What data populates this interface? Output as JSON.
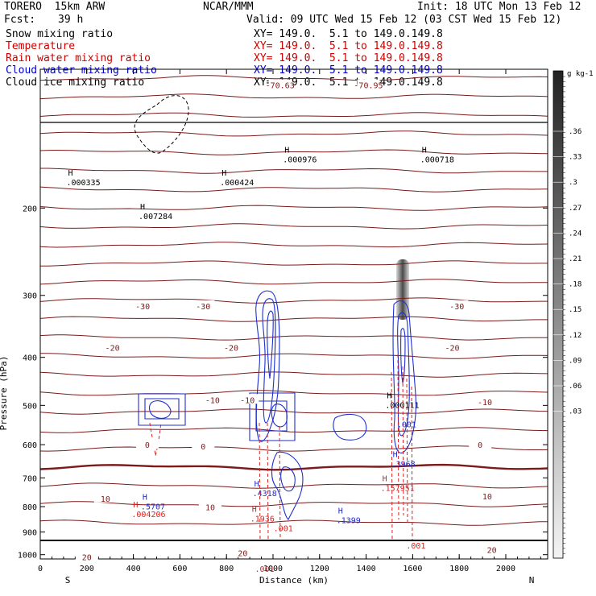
{
  "header": {
    "model": "TORERO  15km ARW",
    "center": "NCAR/MMM",
    "init": "Init: 18 UTC Mon 13 Feb 12",
    "fcst_label": "Fcst:",
    "fcst_value": "39 h",
    "valid": "Valid: 09 UTC Wed 15 Feb 12 (03 CST Wed 15 Feb 12)"
  },
  "legend": [
    {
      "name": "Snow mixing ratio",
      "coords": "XY= 149.0.  5.1 to 149.0.149.8",
      "color": "#000000"
    },
    {
      "name": "Temperature",
      "coords": "XY= 149.0.  5.1 to 149.0.149.8",
      "color": "#cc0000"
    },
    {
      "name": "Rain water mixing ratio",
      "coords": "XY= 149.0.  5.1 to 149.0.149.8",
      "color": "#cc0000"
    },
    {
      "name": "Cloud water mixing ratio",
      "coords": "XY= 149.0.  5.1 to 149.0.149.8",
      "color": "#0000cc"
    },
    {
      "name": "Cloud ice mixing ratio",
      "coords": "XY= 149.0.  5.1 to 149.0.149.8",
      "color": "#000000"
    }
  ],
  "colors": {
    "temperature": "#7b1a1a",
    "cloud_water": "#1f2fd0",
    "rain": "#dd2020",
    "ice": "#000000"
  },
  "chart_data": {
    "type": "heatmap",
    "title": "",
    "xlabel": "Distance (km)",
    "ylabel": "Pressure (hPa)",
    "xlim": [
      0,
      2180
    ],
    "ylim": [
      1020,
      105
    ],
    "y_scale": "log",
    "xticks": [
      0,
      200,
      400,
      600,
      800,
      1000,
      1200,
      1400,
      1600,
      1800,
      2000
    ],
    "yticks": [
      200,
      300,
      400,
      500,
      600,
      700,
      800,
      900,
      1000
    ],
    "x_end_labels": {
      "left": "S",
      "right": "N"
    },
    "colorbar": {
      "unit": "g kg-1",
      "ticks": [
        ".36",
        ".33",
        ".3",
        ".27",
        ".24",
        ".21",
        ".18",
        ".15",
        ".12",
        ".09",
        ".06",
        ".03"
      ]
    },
    "temperature_labels": [
      {
        "v": "-70.63",
        "x": 1030,
        "p": 113
      },
      {
        "v": "-70.95",
        "x": 1410,
        "p": 113
      },
      {
        "v": "-30",
        "x": 440,
        "p": 315
      },
      {
        "v": "-30",
        "x": 700,
        "p": 315
      },
      {
        "v": "-30",
        "x": 1790,
        "p": 315
      },
      {
        "v": "-20",
        "x": 310,
        "p": 382
      },
      {
        "v": "-20",
        "x": 820,
        "p": 382
      },
      {
        "v": "-20",
        "x": 1770,
        "p": 382
      },
      {
        "v": "-10",
        "x": 740,
        "p": 487
      },
      {
        "v": "-10",
        "x": 890,
        "p": 487
      },
      {
        "v": "-10",
        "x": 1910,
        "p": 492
      },
      {
        "v": "0",
        "x": 460,
        "p": 600
      },
      {
        "v": "0",
        "x": 700,
        "p": 604
      },
      {
        "v": "0",
        "x": 1890,
        "p": 600
      },
      {
        "v": "10",
        "x": 280,
        "p": 770
      },
      {
        "v": "10",
        "x": 730,
        "p": 802
      },
      {
        "v": "10",
        "x": 1920,
        "p": 762
      },
      {
        "v": "20",
        "x": 200,
        "p": 1010
      },
      {
        "v": "20",
        "x": 870,
        "p": 992
      },
      {
        "v": "20",
        "x": 1940,
        "p": 977
      }
    ],
    "maxima": [
      {
        "field": "snow",
        "value": ".000335",
        "x": 140,
        "p": 178
      },
      {
        "field": "snow",
        "value": ".007284",
        "x": 450,
        "p": 208
      },
      {
        "field": "snow",
        "value": ".000424",
        "x": 800,
        "p": 178
      },
      {
        "field": "snow",
        "value": ".000976",
        "x": 1070,
        "p": 160
      },
      {
        "field": "snow",
        "value": ".000718",
        "x": 1660,
        "p": 160
      },
      {
        "field": "snow",
        "value": ".000111",
        "x": 1510,
        "p": 500
      },
      {
        "field": "cloud_water",
        "value": ".5707",
        "x": 460,
        "p": 802
      },
      {
        "field": "cloud_water",
        "value": ".4318",
        "x": 940,
        "p": 753
      },
      {
        "field": "cloud_water",
        "value": ".1399",
        "x": 1300,
        "p": 854
      },
      {
        "field": "cloud_water",
        "value": ".3968",
        "x": 1535,
        "p": 657
      },
      {
        "field": "cloud_water",
        "value": ".001",
        "x": 1560,
        "p": 547
      },
      {
        "field": "rain",
        "value": ".004206",
        "x": 420,
        "p": 830
      },
      {
        "field": "rain",
        "value": ".1936",
        "x": 930,
        "p": 848
      },
      {
        "field": "rain",
        "value": ".001",
        "x": 1030,
        "p": 887
      },
      {
        "field": "rain",
        "value": ".157951",
        "x": 1490,
        "p": 735
      },
      {
        "field": "rain",
        "value": ".001",
        "x": 1600,
        "p": 960
      },
      {
        "field": "rain",
        "value": ".001",
        "x": 950,
        "p": 1070
      }
    ]
  }
}
